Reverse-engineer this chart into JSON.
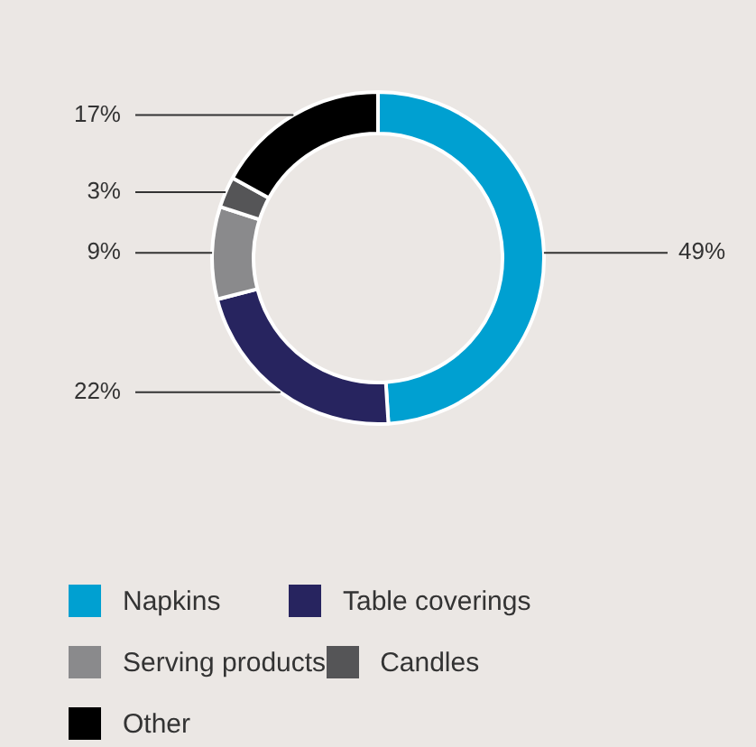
{
  "chart_data": {
    "type": "donut",
    "categories": [
      "Napkins",
      "Table coverings",
      "Serving products",
      "Candles",
      "Other"
    ],
    "values": [
      49,
      22,
      9,
      3,
      17
    ],
    "value_labels": [
      "49%",
      "22%",
      "9%",
      "3%",
      "17%"
    ],
    "colors": [
      "#00a0d1",
      "#27245f",
      "#8a8a8c",
      "#555557",
      "#000000"
    ],
    "legend": "bottom"
  }
}
